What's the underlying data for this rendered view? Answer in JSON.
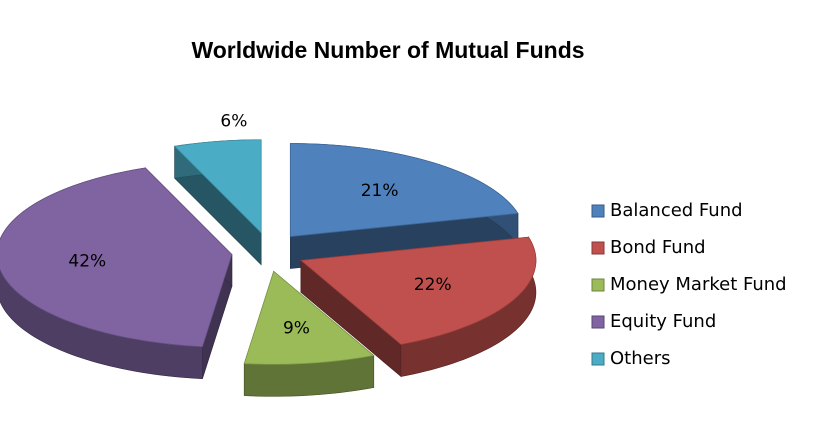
{
  "chart_data": {
    "type": "pie3d",
    "title": "Worldwide Number of Mutual Funds",
    "categories": [
      "Balanced Fund",
      "Bond Fund",
      "Money Market Fund",
      "Equity Fund",
      "Others"
    ],
    "values": [
      21,
      22,
      9,
      42,
      6
    ],
    "value_labels": [
      "21%",
      "22%",
      "9%",
      "42%",
      "6%"
    ],
    "colors": [
      "#4f81bd",
      "#c0504d",
      "#9bbb59",
      "#8064a2",
      "#4bacc6"
    ],
    "legend": "right"
  }
}
